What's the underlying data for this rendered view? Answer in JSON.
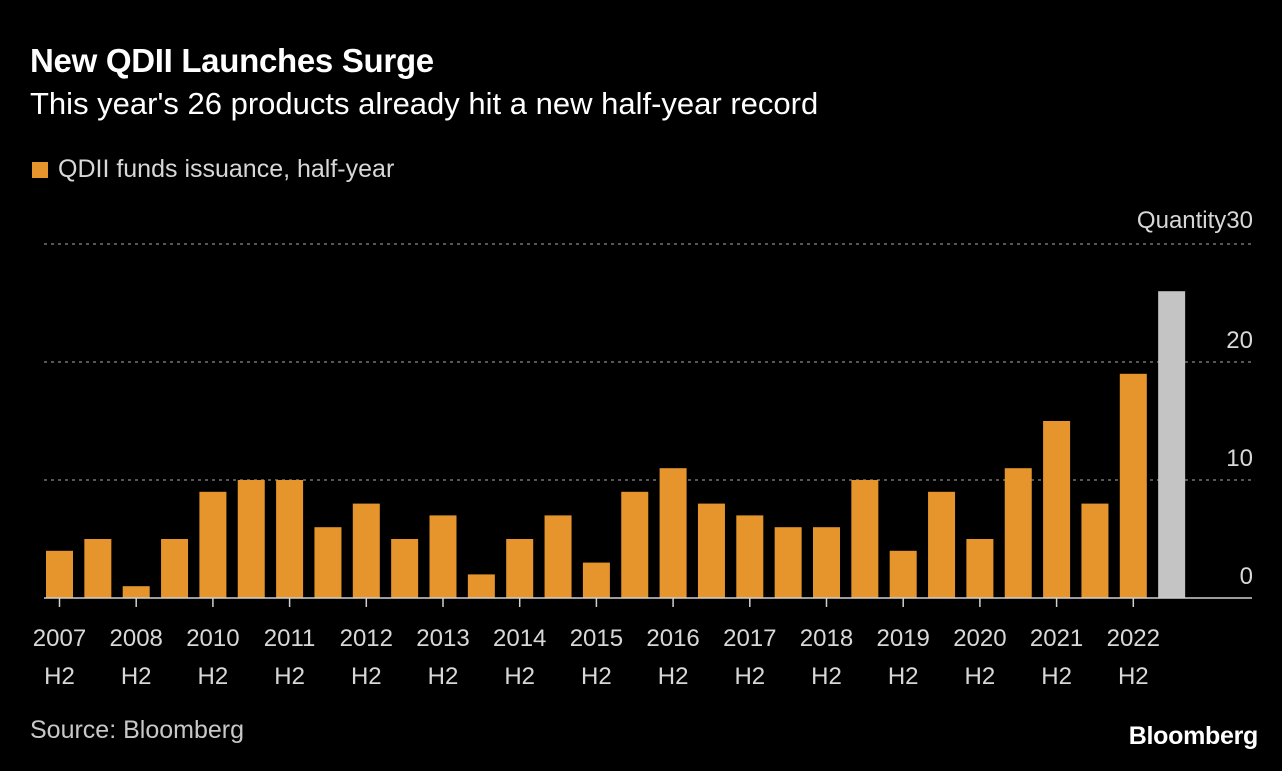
{
  "colors": {
    "background": "#000000",
    "bar": "#e6952d",
    "highlight": "#c4c4c4",
    "grid": "#8a8a8a",
    "axis_text": "#d8d8d8"
  },
  "header": {
    "title": "New QDII Launches Surge",
    "subtitle": "This year's 26 products already hit a new half-year record"
  },
  "legend": {
    "label": "QDII funds issuance, half-year"
  },
  "footer": {
    "source": "Source: Bloomberg",
    "brand": "Bloomberg"
  },
  "chart_data": {
    "type": "bar",
    "title": "New QDII Launches Surge",
    "subtitle": "This year's 26 products already hit a new half-year record",
    "ylabel": "Quantity",
    "ylim": [
      0,
      30
    ],
    "yticks": [
      0,
      10,
      20,
      30
    ],
    "grid": true,
    "legend_position": "top-left",
    "tick_labels": [
      {
        "year": "2007",
        "half": "H2"
      },
      {
        "year": "2008",
        "half": "H2"
      },
      {
        "year": "2010",
        "half": "H2"
      },
      {
        "year": "2011",
        "half": "H2"
      },
      {
        "year": "2012",
        "half": "H2"
      },
      {
        "year": "2013",
        "half": "H2"
      },
      {
        "year": "2014",
        "half": "H2"
      },
      {
        "year": "2015",
        "half": "H2"
      },
      {
        "year": "2016",
        "half": "H2"
      },
      {
        "year": "2017",
        "half": "H2"
      },
      {
        "year": "2018",
        "half": "H2"
      },
      {
        "year": "2019",
        "half": "H2"
      },
      {
        "year": "2020",
        "half": "H2"
      },
      {
        "year": "2021",
        "half": "H2"
      },
      {
        "year": "2022",
        "half": "H2"
      }
    ],
    "series": [
      {
        "name": "QDII funds issuance, half-year",
        "values": [
          4,
          5,
          1,
          5,
          9,
          10,
          10,
          6,
          8,
          5,
          7,
          2,
          5,
          7,
          3,
          9,
          11,
          8,
          7,
          6,
          6,
          10,
          4,
          9,
          5,
          11,
          15,
          8,
          19,
          26
        ],
        "highlight_last": true
      }
    ]
  }
}
